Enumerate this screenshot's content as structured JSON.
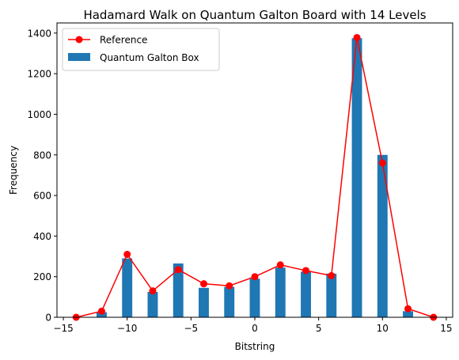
{
  "chart_data": {
    "type": "bar",
    "title": "Hadamard Walk on Quantum Galton Board with 14 Levels",
    "xlabel": "Bitstring",
    "ylabel": "Frequency",
    "xlim": [
      -15.5,
      15.5
    ],
    "ylim": [
      0,
      1450
    ],
    "xticks": [
      -15,
      -10,
      -5,
      0,
      5,
      10,
      15
    ],
    "yticks": [
      0,
      200,
      400,
      600,
      800,
      1000,
      1200,
      1400
    ],
    "xtick_labels": [
      "−15",
      "−10",
      "−5",
      "0",
      "5",
      "10",
      "15"
    ],
    "ytick_labels": [
      "0",
      "200",
      "400",
      "600",
      "800",
      "1000",
      "1200",
      "1400"
    ],
    "grid": false,
    "legend_position": "top-left",
    "bar_series": {
      "name": "Quantum Galton Box",
      "color": "#1f77b4",
      "x": [
        -12,
        -10,
        -8,
        -6,
        -4,
        -2,
        0,
        2,
        4,
        6,
        8,
        10,
        12
      ],
      "values": [
        25,
        290,
        125,
        265,
        145,
        150,
        190,
        245,
        225,
        215,
        1375,
        800,
        30
      ]
    },
    "line_series": {
      "name": "Reference",
      "color": "#ff0000",
      "x": [
        -14,
        -12,
        -10,
        -8,
        -6,
        -4,
        -2,
        0,
        2,
        4,
        6,
        8,
        10,
        12,
        14
      ],
      "values": [
        0,
        30,
        310,
        130,
        235,
        165,
        155,
        200,
        258,
        230,
        205,
        1378,
        760,
        42,
        0
      ]
    }
  }
}
